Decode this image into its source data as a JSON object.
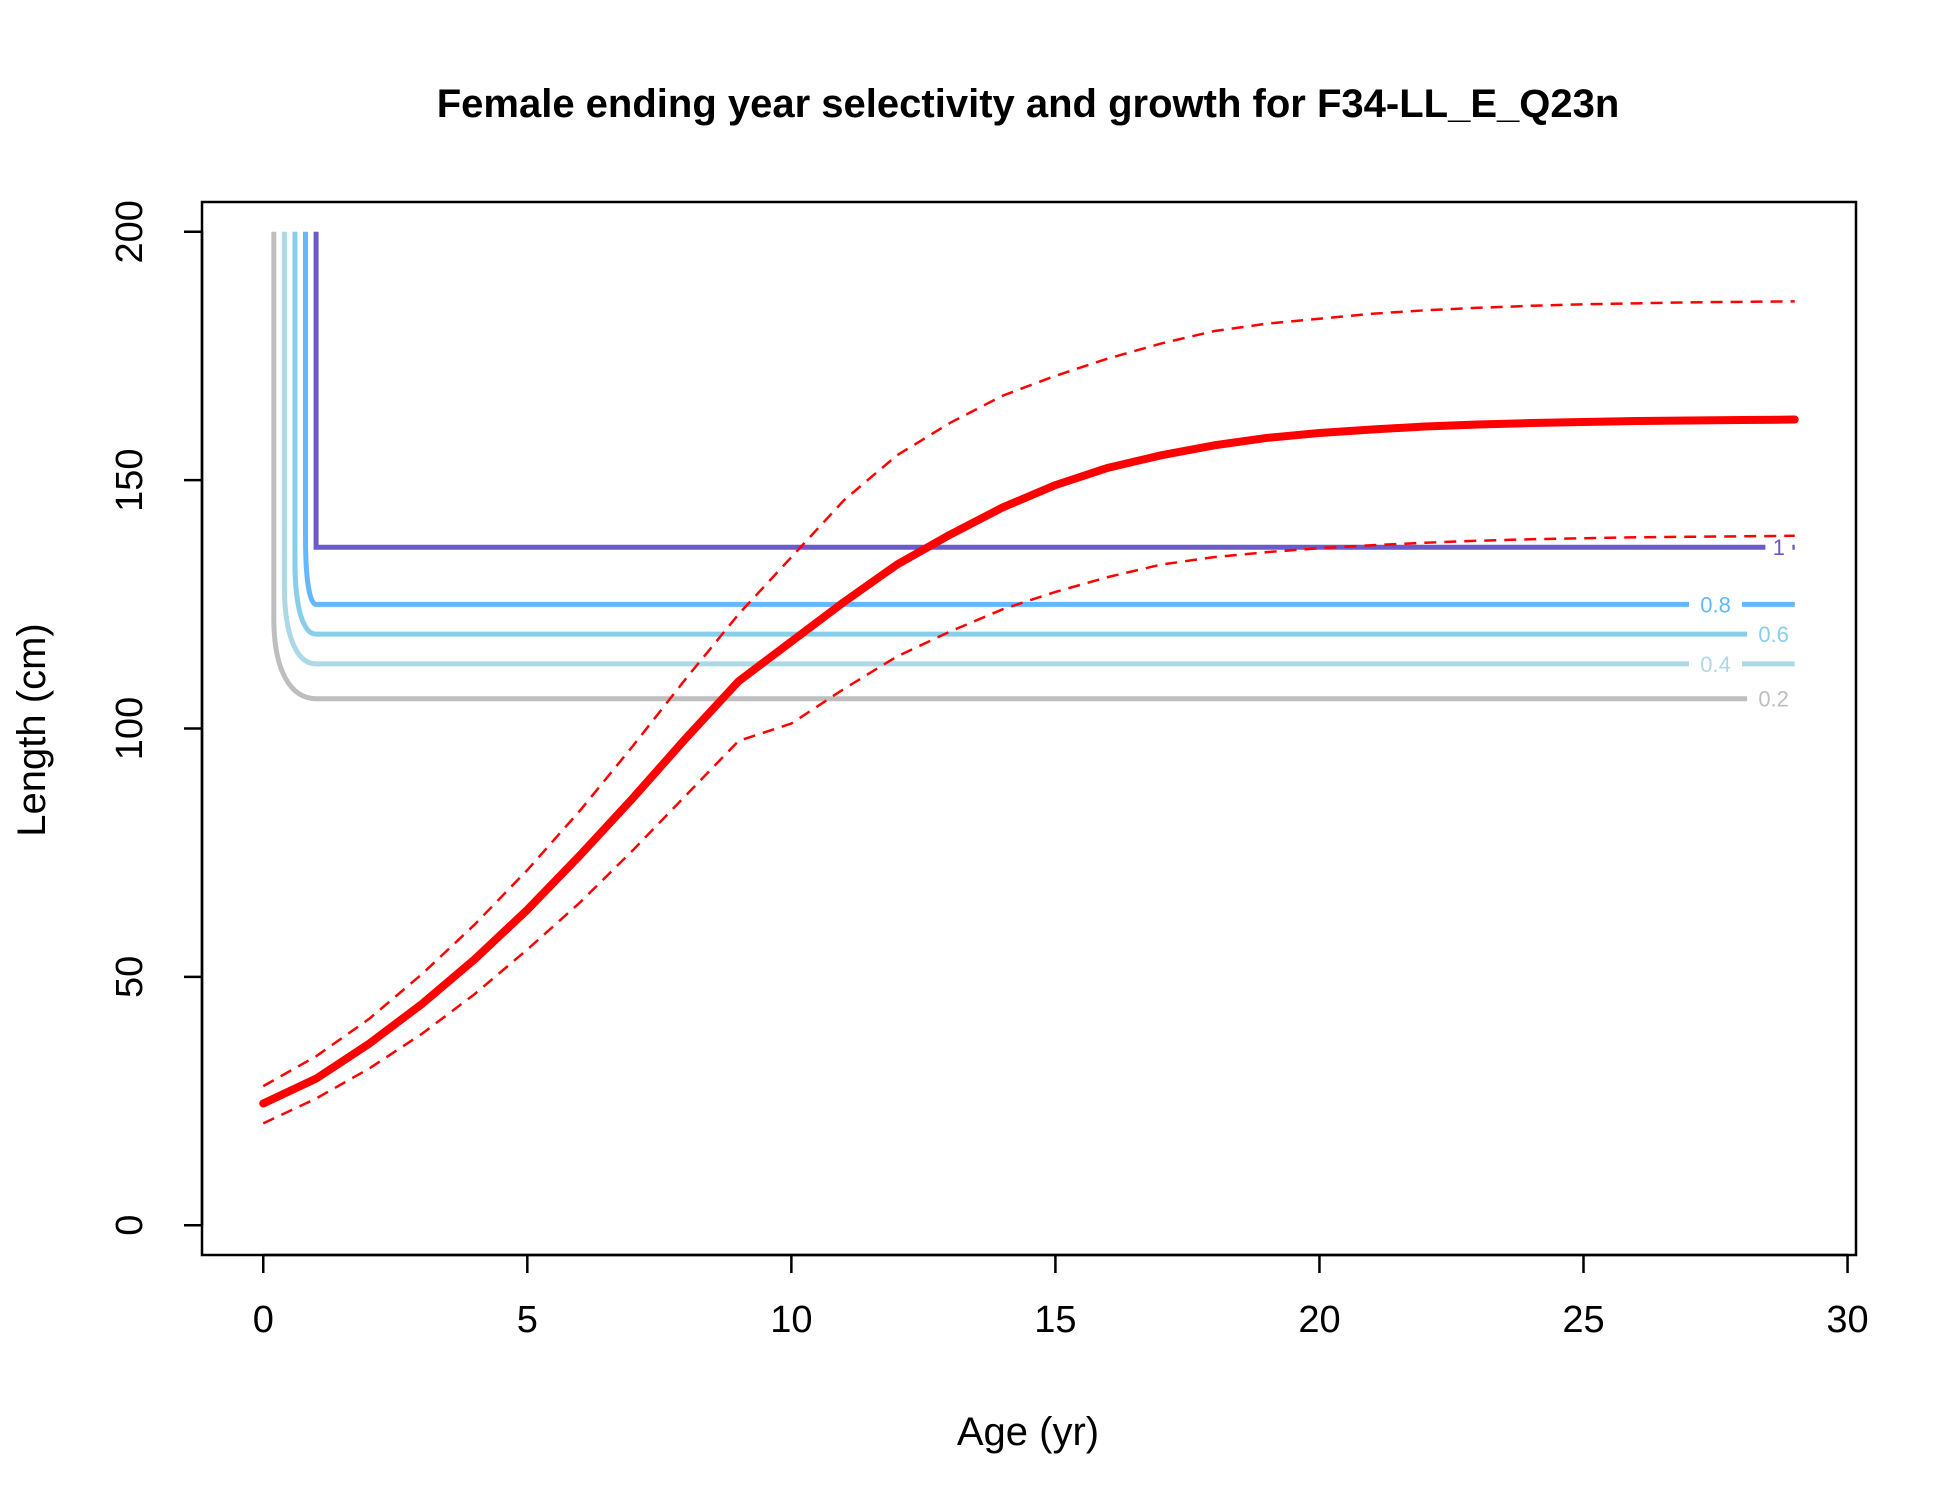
{
  "chart_data": {
    "type": "line",
    "title": "Female ending year selectivity and growth for F34-LL_E_Q23n",
    "xlabel": "Age (yr)",
    "ylabel": "Length (cm)",
    "xlim": [
      -1.16,
      30.16
    ],
    "ylim": [
      -6,
      206
    ],
    "xticks": [
      0,
      5,
      10,
      15,
      20,
      25,
      30
    ],
    "yticks": [
      0,
      50,
      100,
      150,
      200
    ],
    "grid": false,
    "legend": "none",
    "growth": {
      "x": [
        0,
        1,
        2,
        3,
        4,
        5,
        6,
        7,
        8,
        9,
        10,
        11,
        12,
        13,
        14,
        15,
        16,
        17,
        18,
        19,
        20,
        21,
        22,
        23,
        24,
        25,
        26,
        27,
        28,
        29
      ],
      "mean": [
        24.5,
        29.5,
        36.5,
        44.5,
        53.5,
        63.5,
        74.5,
        86,
        98,
        109.5,
        117.5,
        125.5,
        133,
        139,
        144.5,
        149,
        152.5,
        155,
        157,
        158.5,
        159.5,
        160.2,
        160.8,
        161.2,
        161.5,
        161.7,
        161.9,
        162,
        162.1,
        162.2
      ],
      "upper": [
        28,
        34,
        41.5,
        50.5,
        60.5,
        71.5,
        83.5,
        96.5,
        110,
        123,
        134.5,
        146,
        155,
        161.5,
        167,
        171,
        174.5,
        177.5,
        180,
        181.5,
        182.5,
        183.5,
        184.2,
        184.7,
        185.1,
        185.4,
        185.6,
        185.8,
        185.9,
        186
      ],
      "lower": [
        20.5,
        25.5,
        31.5,
        38.5,
        46.5,
        55.5,
        65,
        75.5,
        86.5,
        97.5,
        101,
        108,
        114.5,
        119.5,
        124,
        127.5,
        130.5,
        133,
        134.5,
        135.5,
        136.3,
        136.9,
        137.4,
        137.8,
        138.1,
        138.3,
        138.5,
        138.6,
        138.7,
        138.8
      ],
      "color": "#ff0000"
    },
    "selectivity_contours": [
      {
        "level": "1",
        "x_vertical": 1.0,
        "y_flat": 136.5,
        "y_top": 200,
        "color": "#6a5acd"
      },
      {
        "level": "0.8",
        "x_vertical": 0.8,
        "y_flat": 125,
        "y_top": 200,
        "color": "#63b8ff"
      },
      {
        "level": "0.6",
        "x_vertical": 0.6,
        "y_flat": 119,
        "y_top": 200,
        "color": "#87ceeb"
      },
      {
        "level": "0.4",
        "x_vertical": 0.4,
        "y_flat": 113,
        "y_top": 200,
        "color": "#add8e6"
      },
      {
        "level": "0.2",
        "x_vertical": 0.2,
        "y_flat": 106,
        "y_top": 200,
        "color": "#bebebe"
      }
    ]
  }
}
